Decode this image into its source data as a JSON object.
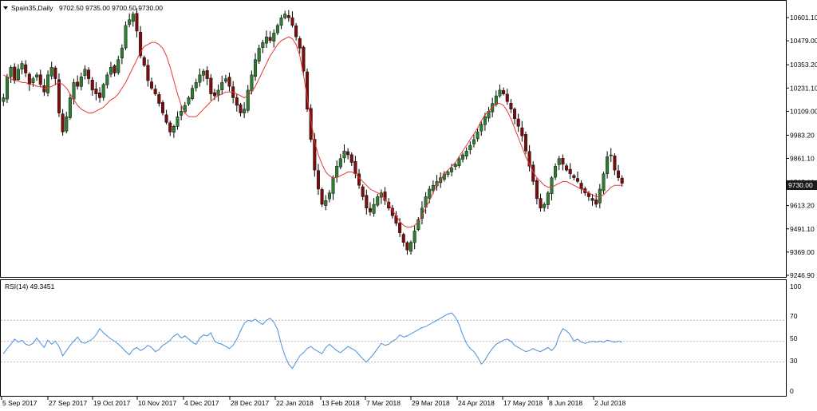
{
  "header": {
    "symbol": "Spain35,Daily",
    "ohlc": "9702.50 9735.00 9700.50 9730.00"
  },
  "indicator": {
    "label": "RSI(14) 49.3451",
    "levels": [
      30,
      50,
      70
    ],
    "axis_ticks": [
      "100",
      "70",
      "50",
      "30",
      "0"
    ]
  },
  "price_axis": {
    "ticks": [
      "10601.10",
      "10479.00",
      "10353.20",
      "10231.10",
      "10109.00",
      "9983.20",
      "9861.10",
      "9735.00",
      "9613.20",
      "9491.10",
      "9369.00",
      "9246.90"
    ],
    "current_price_label": "9730.00"
  },
  "colors": {
    "bull": "#2e7d32",
    "bear": "#7a0e0e",
    "ma": "#e53935",
    "rsi": "#4a90d9",
    "current_label_bg": "#1a1a1a"
  },
  "chart_data": [
    {
      "type": "candlestick",
      "title": "Spain35,Daily",
      "ylim": [
        9246.9,
        10660
      ],
      "x_labels": [
        "5 Sep 2017",
        "27 Sep 2017",
        "19 Oct 2017",
        "10 Nov 2017",
        "4 Dec 2017",
        "28 Dec 2017",
        "22 Jan 2018",
        "13 Feb 2018",
        "7 Mar 2018",
        "29 Mar 2018",
        "24 Apr 2018",
        "17 May 2018",
        "8 Jun 2018",
        "2 Jul 2018"
      ],
      "last_bar": {
        "open": 9702.5,
        "high": 9735.0,
        "low": 9700.5,
        "close": 9730.0
      },
      "series": [
        {
          "name": "price",
          "values": [
            10180,
            10290,
            10340,
            10270,
            10330,
            10360,
            10310,
            10250,
            10280,
            10300,
            10250,
            10210,
            10300,
            10340,
            10280,
            10100,
            10000,
            10080,
            10180,
            10260,
            10240,
            10290,
            10330,
            10280,
            10220,
            10200,
            10180,
            10250,
            10300,
            10340,
            10310,
            10380,
            10440,
            10560,
            10590,
            10620,
            10530,
            10400,
            10350,
            10270,
            10230,
            10200,
            10150,
            10100,
            10050,
            10000,
            10030,
            10080,
            10110,
            10140,
            10180,
            10230,
            10260,
            10300,
            10320,
            10280,
            10200,
            10190,
            10220,
            10260,
            10280,
            10240,
            10180,
            10140,
            10100,
            10120,
            10220,
            10300,
            10380,
            10440,
            10470,
            10500,
            10480,
            10520,
            10560,
            10600,
            10620,
            10600,
            10560,
            10500,
            10440,
            10320,
            10120,
            9960,
            9800,
            9700,
            9620,
            9640,
            9680,
            9760,
            9820,
            9860,
            9900,
            9880,
            9840,
            9780,
            9720,
            9660,
            9600,
            9580,
            9620,
            9660,
            9680,
            9640,
            9600,
            9560,
            9520,
            9470,
            9420,
            9380,
            9420,
            9480,
            9540,
            9600,
            9660,
            9700,
            9720,
            9740,
            9760,
            9780,
            9790,
            9810,
            9830,
            9860,
            9880,
            9900,
            9930,
            9960,
            10000,
            10040,
            10080,
            10110,
            10150,
            10190,
            10220,
            10200,
            10160,
            10120,
            10070,
            10030,
            9980,
            9900,
            9820,
            9740,
            9650,
            9600,
            9620,
            9680,
            9760,
            9820,
            9860,
            9830,
            9800,
            9780,
            9760,
            9740,
            9700,
            9680,
            9660,
            9640,
            9620,
            9700,
            9780,
            9870,
            9880,
            9800,
            9760,
            9730
          ]
        },
        {
          "name": "MA",
          "values": [
            10300,
            10290,
            10280,
            10270,
            10270,
            10260,
            10260,
            10250,
            10250,
            10240,
            10240,
            10230,
            10230,
            10240,
            10250,
            10260,
            10250,
            10230,
            10200,
            10170,
            10140,
            10120,
            10110,
            10100,
            10100,
            10110,
            10120,
            10130,
            10150,
            10170,
            10180,
            10200,
            10230,
            10260,
            10300,
            10340,
            10380,
            10420,
            10450,
            10460,
            10470,
            10470,
            10460,
            10440,
            10400,
            10340,
            10270,
            10200,
            10140,
            10100,
            10080,
            10080,
            10080,
            10100,
            10120,
            10140,
            10160,
            10180,
            10190,
            10200,
            10210,
            10210,
            10210,
            10200,
            10190,
            10180,
            10190,
            10210,
            10240,
            10280,
            10320,
            10360,
            10400,
            10430,
            10460,
            10480,
            10490,
            10500,
            10490,
            10460,
            10400,
            10300,
            10180,
            10060,
            9950,
            9880,
            9830,
            9790,
            9770,
            9760,
            9760,
            9770,
            9780,
            9790,
            9790,
            9780,
            9760,
            9740,
            9720,
            9700,
            9690,
            9680,
            9670,
            9650,
            9620,
            9590,
            9560,
            9530,
            9510,
            9500,
            9500,
            9510,
            9530,
            9560,
            9600,
            9640,
            9680,
            9720,
            9750,
            9780,
            9800,
            9820,
            9840,
            9870,
            9900,
            9930,
            9960,
            9990,
            10020,
            10060,
            10090,
            10110,
            10130,
            10150,
            10150,
            10140,
            10110,
            10070,
            10020,
            9970,
            9920,
            9870,
            9830,
            9790,
            9760,
            9740,
            9720,
            9710,
            9710,
            9720,
            9730,
            9740,
            9740,
            9730,
            9720,
            9710,
            9700,
            9690,
            9680,
            9670,
            9660,
            9660,
            9670,
            9690,
            9710,
            9720,
            9720,
            9720
          ]
        }
      ]
    },
    {
      "type": "line",
      "title": "RSI(14) 49.3451",
      "ylim": [
        0,
        100
      ],
      "series": [
        {
          "name": "RSI",
          "values": [
            38,
            43,
            47,
            52,
            49,
            51,
            47,
            46,
            48,
            53,
            48,
            44,
            51,
            47,
            50,
            45,
            36,
            41,
            46,
            50,
            54,
            49,
            48,
            50,
            52,
            56,
            62,
            58,
            55,
            52,
            50,
            47,
            44,
            40,
            37,
            42,
            44,
            41,
            43,
            46,
            44,
            40,
            42,
            46,
            48,
            51,
            55,
            57,
            53,
            55,
            52,
            49,
            47,
            53,
            56,
            55,
            58,
            50,
            48,
            47,
            45,
            43,
            46,
            52,
            60,
            67,
            70,
            69,
            71,
            68,
            66,
            70,
            72,
            68,
            61,
            47,
            36,
            28,
            24,
            30,
            36,
            39,
            43,
            45,
            42,
            40,
            38,
            44,
            47,
            44,
            41,
            39,
            42,
            45,
            43,
            41,
            37,
            33,
            30,
            34,
            38,
            43,
            48,
            46,
            47,
            50,
            52,
            56,
            54,
            55,
            57,
            59,
            61,
            63,
            64,
            66,
            68,
            70,
            72,
            74,
            76,
            77,
            73,
            66,
            56,
            48,
            43,
            40,
            35,
            28,
            32,
            38,
            43,
            47,
            49,
            51,
            52,
            50,
            46,
            44,
            42,
            40,
            41,
            43,
            41,
            40,
            42,
            44,
            41,
            45,
            55,
            62,
            60,
            56,
            50,
            52,
            49,
            48,
            49,
            50,
            49,
            50,
            49,
            51,
            50,
            49,
            50,
            49
          ]
        }
      ]
    }
  ]
}
